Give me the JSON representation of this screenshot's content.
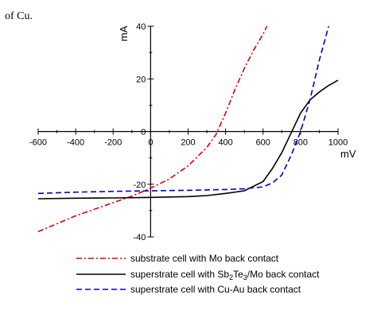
{
  "caption_fragment": "of Cu.",
  "chart_data": {
    "type": "line",
    "xlabel": "mV",
    "ylabel": "mA",
    "xlim": [
      -600,
      1000
    ],
    "ylim": [
      -40,
      40
    ],
    "xticks": [
      -600,
      -400,
      -200,
      0,
      200,
      400,
      600,
      800,
      1000
    ],
    "yticks": [
      -40,
      -20,
      0,
      20,
      40
    ],
    "xtick_labels": [
      "-600",
      "-400",
      "-200",
      "0",
      "200",
      "400",
      "600",
      "800",
      "1000"
    ],
    "ytick_labels": [
      "-40",
      "-20",
      "0",
      "20",
      "40"
    ],
    "grid": false,
    "legend_position": "bottom",
    "series": [
      {
        "name": "substrate cell with Mo back contact",
        "color": "#dd0000",
        "style": "dash-dot",
        "x": [
          -600,
          -500,
          -400,
          -300,
          -200,
          -100,
          0,
          100,
          200,
          300,
          350,
          400,
          450,
          500,
          550,
          600,
          620
        ],
        "y": [
          -38,
          -35,
          -32,
          -29.5,
          -27,
          -24.5,
          -21.5,
          -18,
          -13,
          -6,
          -1,
          7,
          16,
          24,
          31,
          37,
          40
        ]
      },
      {
        "name_parts": [
          "superstrate cell with Sb",
          "2",
          "Te",
          "3",
          "/Mo back contact"
        ],
        "color": "#000000",
        "style": "solid",
        "x": [
          -600,
          -400,
          -200,
          0,
          200,
          300,
          400,
          500,
          600,
          650,
          700,
          750,
          800,
          850,
          900,
          950,
          1000
        ],
        "y": [
          -25.5,
          -25.3,
          -25.2,
          -25,
          -24.7,
          -24.3,
          -23.5,
          -22.5,
          -19,
          -14,
          -8,
          -0.5,
          7,
          12,
          15,
          17.5,
          19.5
        ]
      },
      {
        "name": "superstrate cell with Cu-Au back contact",
        "color": "#0000cc",
        "style": "dashed",
        "x": [
          -600,
          -400,
          -200,
          0,
          200,
          400,
          500,
          600,
          650,
          700,
          750,
          800,
          850,
          900,
          950
        ],
        "y": [
          -23.5,
          -23,
          -22.7,
          -22.5,
          -22.3,
          -22,
          -21.7,
          -21,
          -19.5,
          -16.5,
          -9,
          0,
          12,
          27,
          40
        ]
      }
    ]
  }
}
